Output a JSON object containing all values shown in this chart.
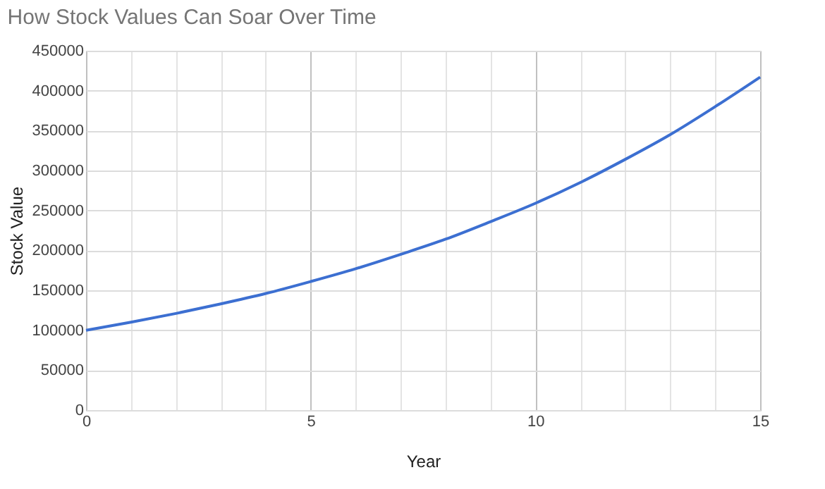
{
  "chart_data": {
    "type": "line",
    "title": "How Stock Values Can Soar Over Time",
    "xlabel": "Year",
    "ylabel": "Stock Value",
    "x": [
      0,
      1,
      2,
      3,
      4,
      5,
      6,
      7,
      8,
      9,
      10,
      11,
      12,
      13,
      14,
      15
    ],
    "series": [
      {
        "color": "#3c6fd1",
        "values": [
          100000,
          110000,
          121000,
          133000,
          146000,
          161000,
          177000,
          195000,
          214000,
          236000,
          259000,
          285000,
          314000,
          345000,
          380000,
          417000
        ]
      }
    ],
    "xlim": [
      0,
      15
    ],
    "xticks": [
      0,
      {
        "value": 1,
        "label": null
      },
      {
        "value": 2,
        "label": null
      },
      {
        "value": 3,
        "label": null
      },
      {
        "value": 4,
        "label": null
      },
      5,
      {
        "value": 6,
        "label": null
      },
      {
        "value": 7,
        "label": null
      },
      {
        "value": 8,
        "label": null
      },
      {
        "value": 9,
        "label": null
      },
      10,
      {
        "value": 11,
        "label": null
      },
      {
        "value": 12,
        "label": null
      },
      {
        "value": 13,
        "label": null
      },
      {
        "value": 14,
        "label": null
      },
      15
    ],
    "ylim": [
      0,
      450000
    ],
    "yticks": [
      0,
      50000,
      100000,
      150000,
      200000,
      250000,
      300000,
      350000,
      400000,
      450000
    ],
    "grid": true,
    "marker": "none",
    "line_style": "solid"
  }
}
